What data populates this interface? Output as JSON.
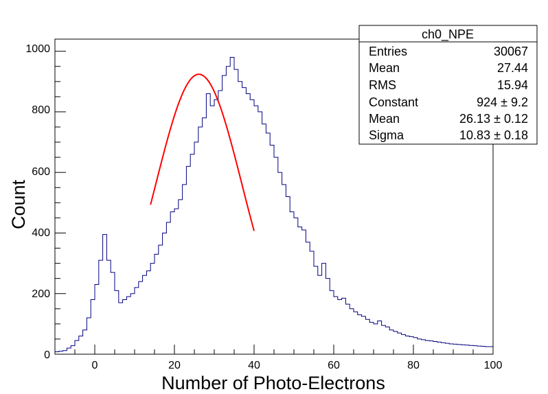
{
  "chart_data": {
    "type": "histogram",
    "xlabel": "Number of Photo-Electrons",
    "ylabel": "Count",
    "xlim": [
      -10,
      100
    ],
    "ylim": [
      0,
      1040
    ],
    "x_ticks": [
      "0",
      "20",
      "40",
      "60",
      "80",
      "100"
    ],
    "y_ticks": [
      "0",
      "200",
      "400",
      "600",
      "800",
      "1000"
    ],
    "x_tick_values": [
      0,
      20,
      40,
      60,
      80,
      100
    ],
    "y_tick_values": [
      0,
      200,
      400,
      600,
      800,
      1000
    ],
    "histogram": {
      "bin_width": 1,
      "bin_start": -10,
      "color": "#000080",
      "counts": [
        8,
        10,
        12,
        20,
        28,
        45,
        60,
        80,
        120,
        180,
        230,
        310,
        395,
        310,
        270,
        210,
        170,
        180,
        190,
        200,
        220,
        240,
        260,
        275,
        300,
        330,
        360,
        400,
        435,
        470,
        480,
        510,
        560,
        620,
        660,
        700,
        750,
        780,
        860,
        820,
        840,
        870,
        920,
        950,
        980,
        940,
        900,
        880,
        860,
        840,
        820,
        800,
        760,
        730,
        690,
        650,
        600,
        560,
        520,
        470,
        450,
        420,
        410,
        370,
        340,
        290,
        260,
        300,
        250,
        210,
        190,
        180,
        185,
        165,
        150,
        140,
        130,
        125,
        115,
        105,
        100,
        110,
        95,
        90,
        80,
        75,
        70,
        65,
        60,
        58,
        55,
        50,
        48,
        45,
        44,
        42,
        40,
        38,
        36,
        34,
        33,
        32,
        31,
        30,
        29,
        28,
        27,
        26,
        25,
        25
      ]
    },
    "fit": {
      "function": "gaus",
      "color": "#ff0000",
      "constant": 924,
      "mean": 26.13,
      "sigma": 10.83,
      "x_range": [
        14,
        40
      ]
    },
    "stats_box": {
      "title": "ch0_NPE",
      "rows": [
        {
          "label": "Entries",
          "value": "30067"
        },
        {
          "label": "Mean",
          "value": "27.44"
        },
        {
          "label": "RMS",
          "value": "15.94"
        },
        {
          "label": "Constant",
          "value": "924 ± 9.2"
        },
        {
          "label": "Mean",
          "value": "26.13 ± 0.12"
        },
        {
          "label": "Sigma",
          "value": "10.83 ± 0.18"
        }
      ]
    }
  }
}
